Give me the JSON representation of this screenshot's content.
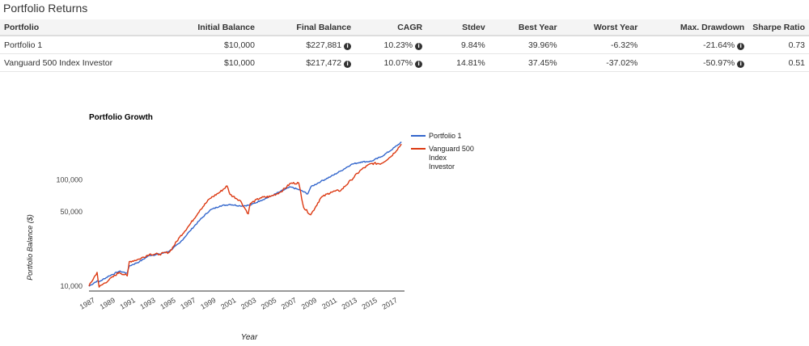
{
  "section_title": "Portfolio Returns",
  "table": {
    "headers": [
      "Portfolio",
      "Initial Balance",
      "Final Balance",
      "CAGR",
      "Stdev",
      "Best Year",
      "Worst Year",
      "Max. Drawdown",
      "Sharpe Ratio"
    ],
    "rows": [
      {
        "portfolio": "Portfolio 1",
        "initial_balance": "$10,000",
        "final_balance": "$227,881",
        "cagr": "10.23%",
        "stdev": "9.84%",
        "best_year": "39.96%",
        "worst_year": "-6.32%",
        "max_drawdown": "-21.64%",
        "sharpe_ratio": "0.73"
      },
      {
        "portfolio": "Vanguard 500 Index Investor",
        "initial_balance": "$10,000",
        "final_balance": "$217,472",
        "cagr": "10.07%",
        "stdev": "14.81%",
        "best_year": "37.45%",
        "worst_year": "-37.02%",
        "max_drawdown": "-50.97%",
        "sharpe_ratio": "0.51"
      }
    ],
    "info_icon": "info-circle-icon"
  },
  "chart_data": {
    "type": "line",
    "title": "Portfolio Growth",
    "xlabel": "Year",
    "ylabel": "Portfolio Balance ($)",
    "y_scale": "log",
    "ylim": [
      9000,
      300000
    ],
    "xlim": [
      1987,
      2018.3
    ],
    "x_ticks": [
      "1987",
      "1989",
      "1991",
      "1993",
      "1995",
      "1997",
      "1999",
      "2001",
      "2003",
      "2005",
      "2007",
      "2009",
      "2011",
      "2013",
      "2015",
      "2017"
    ],
    "y_ticks": [
      {
        "value": 10000,
        "label": "10,000"
      },
      {
        "value": 50000,
        "label": "50,000"
      },
      {
        "value": 100000,
        "label": "100,000"
      }
    ],
    "grid": false,
    "legend_position": "right",
    "series": [
      {
        "name": "Portfolio 1",
        "color": "#3366cc",
        "x": [
          1987,
          1987.8,
          1988,
          1989,
          1990,
          1990.8,
          1991,
          1992,
          1993,
          1994,
          1995,
          1996,
          1997,
          1998,
          1999,
          2000,
          2001,
          2002,
          2003,
          2004,
          2005,
          2006,
          2007,
          2008,
          2008.7,
          2009,
          2010,
          2011,
          2012,
          2013,
          2014,
          2015,
          2016,
          2017,
          2018
        ],
        "values": [
          10000,
          11200,
          11000,
          12500,
          13800,
          13300,
          15500,
          17000,
          19500,
          20000,
          21500,
          25500,
          33000,
          42000,
          52000,
          57000,
          59000,
          57000,
          58000,
          64000,
          70000,
          78000,
          86000,
          80000,
          74000,
          86000,
          97000,
          108000,
          122000,
          140000,
          148000,
          150000,
          166000,
          192000,
          227881
        ]
      },
      {
        "name": "Vanguard 500 Index Investor",
        "color": "#dc3912",
        "x": [
          1987,
          1987.8,
          1988,
          1989,
          1990,
          1990.8,
          1991,
          1992,
          1993,
          1994,
          1995,
          1996,
          1997,
          1998,
          1999,
          2000,
          2000.7,
          2001,
          2002,
          2002.8,
          2003,
          2004,
          2005,
          2006,
          2007,
          2007.8,
          2008.3,
          2009,
          2010,
          2011,
          2012,
          2013,
          2014,
          2015,
          2016,
          2017,
          2018
        ],
        "values": [
          10000,
          13500,
          9800,
          11500,
          13500,
          12500,
          17000,
          18000,
          20000,
          20000,
          21000,
          29000,
          38000,
          52000,
          67000,
          77000,
          88000,
          73000,
          64000,
          48000,
          60000,
          68000,
          70000,
          77000,
          93000,
          94000,
          55000,
          47000,
          68000,
          77000,
          80000,
          100000,
          125000,
          143000,
          143000,
          168000,
          217472
        ]
      }
    ]
  }
}
